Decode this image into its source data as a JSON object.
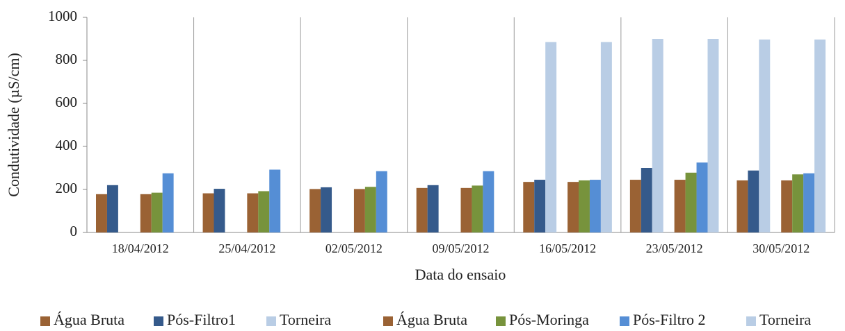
{
  "chart_data": {
    "type": "bar",
    "ylabel": "Condutividade (µS/cm)",
    "xlabel": "Data do ensaio",
    "categories": [
      "18/04/2012",
      "25/04/2012",
      "02/05/2012",
      "09/05/2012",
      "16/05/2012",
      "23/05/2012",
      "30/05/2012"
    ],
    "series": [
      {
        "name": "Água Bruta",
        "color": "#9a6234",
        "values": [
          178,
          182,
          202,
          207,
          235,
          245,
          242
        ]
      },
      {
        "name": "Pós-Filtro1",
        "color": "#355a8b",
        "values": [
          220,
          203,
          210,
          220,
          245,
          300,
          288
        ]
      },
      {
        "name": "Torneira",
        "color": "#b9cde5",
        "values": [
          null,
          null,
          null,
          null,
          885,
          900,
          897
        ]
      },
      {
        "name": "Água Bruta",
        "color": "#9a6234",
        "values": [
          178,
          182,
          202,
          207,
          235,
          245,
          242
        ]
      },
      {
        "name": "Pós-Moringa",
        "color": "#77933c",
        "values": [
          185,
          192,
          212,
          218,
          242,
          278,
          270
        ]
      },
      {
        "name": "Pós-Filtro 2",
        "color": "#558ed5",
        "values": [
          275,
          292,
          285,
          285,
          245,
          325,
          275
        ]
      },
      {
        "name": "Torneira",
        "color": "#b9cde5",
        "values": [
          null,
          null,
          null,
          null,
          885,
          900,
          897
        ]
      }
    ],
    "ylim": [
      0,
      1000
    ],
    "yticks": [
      0,
      200,
      400,
      600,
      800,
      1000
    ],
    "legend": "bottom"
  }
}
